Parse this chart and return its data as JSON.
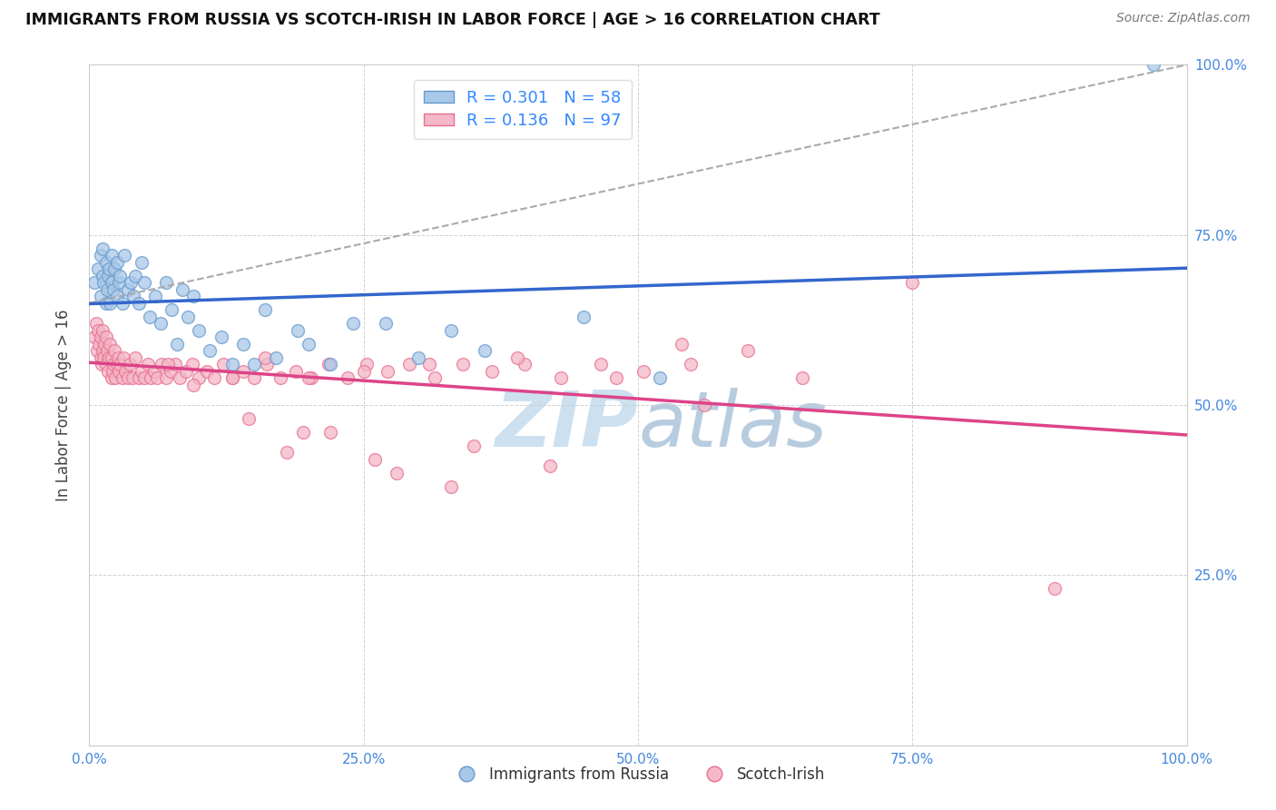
{
  "title": "IMMIGRANTS FROM RUSSIA VS SCOTCH-IRISH IN LABOR FORCE | AGE > 16 CORRELATION CHART",
  "source": "Source: ZipAtlas.com",
  "ylabel": "In Labor Force | Age > 16",
  "r_blue": 0.301,
  "n_blue": 58,
  "r_pink": 0.136,
  "n_pink": 97,
  "blue_color": "#a8c8e8",
  "blue_edge_color": "#6699cc",
  "pink_color": "#f4b8c8",
  "pink_edge_color": "#e87090",
  "blue_line_color": "#3366cc",
  "pink_line_color": "#dd4488",
  "gray_dash_color": "#aaaaaa",
  "title_color": "#111111",
  "source_color": "#777777",
  "watermark_color": "#cce0f0",
  "tick_color": "#4488dd",
  "ylabel_color": "#444444",
  "legend_text_color": "#3388ff",
  "blue_x": [
    0.005,
    0.008,
    0.01,
    0.01,
    0.012,
    0.012,
    0.013,
    0.015,
    0.015,
    0.016,
    0.017,
    0.018,
    0.019,
    0.02,
    0.02,
    0.022,
    0.023,
    0.025,
    0.025,
    0.027,
    0.028,
    0.03,
    0.032,
    0.035,
    0.038,
    0.04,
    0.042,
    0.045,
    0.048,
    0.05,
    0.055,
    0.06,
    0.065,
    0.07,
    0.075,
    0.08,
    0.085,
    0.09,
    0.095,
    0.1,
    0.11,
    0.12,
    0.13,
    0.14,
    0.15,
    0.16,
    0.17,
    0.19,
    0.2,
    0.22,
    0.24,
    0.27,
    0.3,
    0.33,
    0.36,
    0.45,
    0.52,
    0.97
  ],
  "blue_y": [
    0.68,
    0.7,
    0.72,
    0.66,
    0.69,
    0.73,
    0.68,
    0.71,
    0.65,
    0.67,
    0.69,
    0.7,
    0.65,
    0.72,
    0.68,
    0.67,
    0.7,
    0.66,
    0.71,
    0.68,
    0.69,
    0.65,
    0.72,
    0.67,
    0.68,
    0.66,
    0.69,
    0.65,
    0.71,
    0.68,
    0.63,
    0.66,
    0.62,
    0.68,
    0.64,
    0.59,
    0.67,
    0.63,
    0.66,
    0.61,
    0.58,
    0.6,
    0.56,
    0.59,
    0.56,
    0.64,
    0.57,
    0.61,
    0.59,
    0.56,
    0.62,
    0.62,
    0.57,
    0.61,
    0.58,
    0.63,
    0.54,
    1.0
  ],
  "pink_x": [
    0.005,
    0.006,
    0.007,
    0.008,
    0.009,
    0.01,
    0.01,
    0.011,
    0.012,
    0.012,
    0.013,
    0.014,
    0.015,
    0.015,
    0.016,
    0.017,
    0.018,
    0.019,
    0.02,
    0.02,
    0.021,
    0.022,
    0.023,
    0.024,
    0.025,
    0.026,
    0.027,
    0.028,
    0.03,
    0.031,
    0.033,
    0.035,
    0.037,
    0.039,
    0.042,
    0.045,
    0.048,
    0.05,
    0.053,
    0.056,
    0.059,
    0.062,
    0.066,
    0.07,
    0.074,
    0.078,
    0.082,
    0.088,
    0.094,
    0.1,
    0.107,
    0.114,
    0.122,
    0.13,
    0.14,
    0.15,
    0.162,
    0.174,
    0.188,
    0.202,
    0.218,
    0.235,
    0.253,
    0.272,
    0.292,
    0.315,
    0.34,
    0.367,
    0.397,
    0.43,
    0.466,
    0.505,
    0.548,
    0.6,
    0.65,
    0.54,
    0.48,
    0.39,
    0.31,
    0.25,
    0.2,
    0.16,
    0.13,
    0.18,
    0.22,
    0.28,
    0.35,
    0.42,
    0.33,
    0.26,
    0.195,
    0.145,
    0.75,
    0.56,
    0.095,
    0.072,
    0.88
  ],
  "pink_y": [
    0.6,
    0.62,
    0.58,
    0.61,
    0.59,
    0.57,
    0.6,
    0.56,
    0.58,
    0.61,
    0.57,
    0.59,
    0.56,
    0.6,
    0.58,
    0.55,
    0.57,
    0.59,
    0.54,
    0.57,
    0.55,
    0.56,
    0.58,
    0.54,
    0.56,
    0.57,
    0.55,
    0.56,
    0.54,
    0.57,
    0.55,
    0.54,
    0.56,
    0.54,
    0.57,
    0.54,
    0.55,
    0.54,
    0.56,
    0.54,
    0.55,
    0.54,
    0.56,
    0.54,
    0.55,
    0.56,
    0.54,
    0.55,
    0.56,
    0.54,
    0.55,
    0.54,
    0.56,
    0.54,
    0.55,
    0.54,
    0.56,
    0.54,
    0.55,
    0.54,
    0.56,
    0.54,
    0.56,
    0.55,
    0.56,
    0.54,
    0.56,
    0.55,
    0.56,
    0.54,
    0.56,
    0.55,
    0.56,
    0.58,
    0.54,
    0.59,
    0.54,
    0.57,
    0.56,
    0.55,
    0.54,
    0.57,
    0.54,
    0.43,
    0.46,
    0.4,
    0.44,
    0.41,
    0.38,
    0.42,
    0.46,
    0.48,
    0.68,
    0.5,
    0.53,
    0.56,
    0.23
  ]
}
